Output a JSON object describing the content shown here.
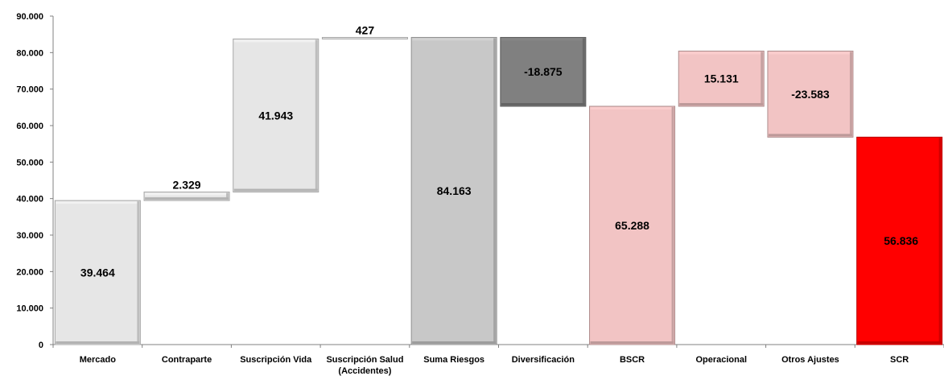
{
  "chart_data": {
    "type": "bar",
    "subtype": "waterfall",
    "title": "",
    "xlabel": "",
    "ylabel": "",
    "ylim": [
      0,
      90000
    ],
    "yticks": [
      "0",
      "10.000",
      "20.000",
      "30.000",
      "40.000",
      "50.000",
      "60.000",
      "70.000",
      "80.000",
      "90.000"
    ],
    "grid": false,
    "categories": [
      [
        "Mercado"
      ],
      [
        "Contraparte"
      ],
      [
        "Suscripción Vida"
      ],
      [
        "Suscripción Salud",
        "(Accidentes)"
      ],
      [
        "Suma Riesgos"
      ],
      [
        "Diversificación"
      ],
      [
        "BSCR"
      ],
      [
        "Operacional"
      ],
      [
        "Otros Ajustes"
      ],
      [
        "SCR"
      ]
    ],
    "bars": [
      {
        "base": 0,
        "top": 39464,
        "label": "39.464",
        "color": "#e6e6e6"
      },
      {
        "base": 39464,
        "top": 41793,
        "label": "2.329",
        "color": "#e6e6e6"
      },
      {
        "base": 41793,
        "top": 83736,
        "label": "41.943",
        "color": "#e6e6e6"
      },
      {
        "base": 83736,
        "top": 84163,
        "label": "427",
        "color": "#e6e6e6"
      },
      {
        "base": 0,
        "top": 84163,
        "label": "84.163",
        "color": "#c8c8c8"
      },
      {
        "base": 65288,
        "top": 84163,
        "label": "-18.875",
        "color": "#808080"
      },
      {
        "base": 0,
        "top": 65288,
        "label": "65.288",
        "color": "#f2c4c4"
      },
      {
        "base": 65288,
        "top": 80419,
        "label": "15.131",
        "color": "#f2c4c4"
      },
      {
        "base": 56836,
        "top": 80419,
        "label": "-23.583",
        "color": "#f2c4c4"
      },
      {
        "base": 0,
        "top": 56836,
        "label": "56.836",
        "color": "#ff0000"
      }
    ]
  }
}
